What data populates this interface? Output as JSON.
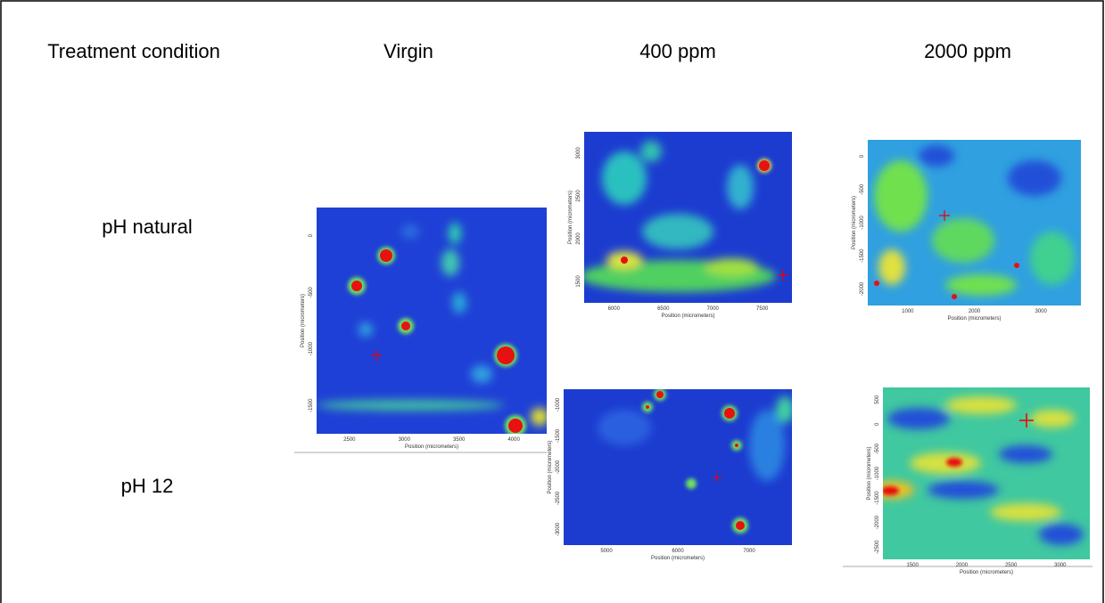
{
  "header": {
    "columns": [
      "Treatment condition",
      "Virgin",
      "400 ppm",
      "2000 ppm"
    ]
  },
  "rows": [
    "pH natural",
    "pH 12"
  ],
  "panels": [
    {
      "x_label": "Position (micrometers)",
      "y_label": "Position (micrometers)",
      "x_ticks": [
        "2500",
        "3000",
        "3500",
        "4000"
      ],
      "y_ticks": [
        "0",
        "-500",
        "-1000",
        "-1500"
      ]
    },
    {
      "x_label": "Position (micrometers)",
      "y_label": "Position (micrometers)",
      "x_ticks": [
        "6000",
        "6500",
        "7000",
        "7500"
      ],
      "y_ticks": [
        "3000",
        "2500",
        "2000",
        "1500"
      ]
    },
    {
      "x_label": "Position (micrometers)",
      "y_label": "Position (micrometers)",
      "x_ticks": [
        "1000",
        "2000",
        "3000"
      ],
      "y_ticks": [
        "0",
        "-500",
        "-1000",
        "-1500",
        "-2000"
      ]
    },
    {
      "x_label": "Position (micrometers)",
      "y_label": "Position (micrometers)",
      "x_ticks": [
        "5000",
        "6000",
        "7000"
      ],
      "y_ticks": [
        "-1000",
        "-1500",
        "-2000",
        "-2500",
        "-3000"
      ]
    },
    {
      "x_label": "Position (micrometers)",
      "y_label": "Position (micrometers)",
      "x_ticks": [
        "1500",
        "2000",
        "2500",
        "3000"
      ],
      "y_ticks": [
        "500",
        "0",
        "-500",
        "-1000",
        "-1500",
        "-2000",
        "-2500"
      ]
    }
  ]
}
